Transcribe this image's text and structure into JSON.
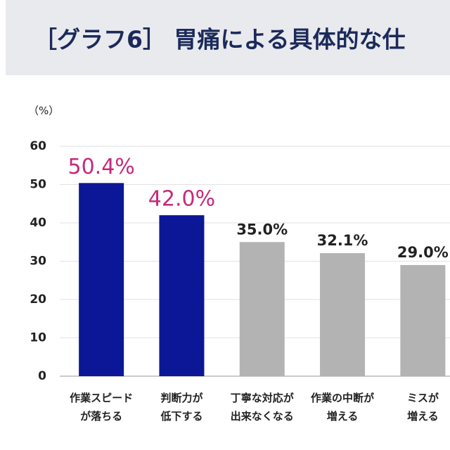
{
  "chart_data": {
    "type": "bar",
    "title": "［グラフ6］ 胃痛による具体的な仕",
    "y_unit": "（%）",
    "categories": [
      "作業スピード\nが落ちる",
      "判断力が\n低下する",
      "丁寧な対応が\n出来なくなる",
      "作業の中断が\n増える",
      "ミスが\n増える"
    ],
    "values": [
      50.4,
      42.0,
      35.0,
      32.1,
      29.0
    ],
    "value_labels": [
      "50.4%",
      "42.0%",
      "35.0%",
      "32.1%",
      "29.0%"
    ],
    "colors": [
      "#0b1796",
      "#0b1796",
      "#b3b3b3",
      "#b3b3b3",
      "#b3b3b3"
    ],
    "value_label_colors": [
      "#c42a7c",
      "#c42a7c",
      "#222222",
      "#222222",
      "#222222"
    ],
    "ylim": [
      0,
      60
    ],
    "yticks": [
      0,
      10,
      20,
      30,
      40,
      50,
      60
    ],
    "grid": true
  }
}
